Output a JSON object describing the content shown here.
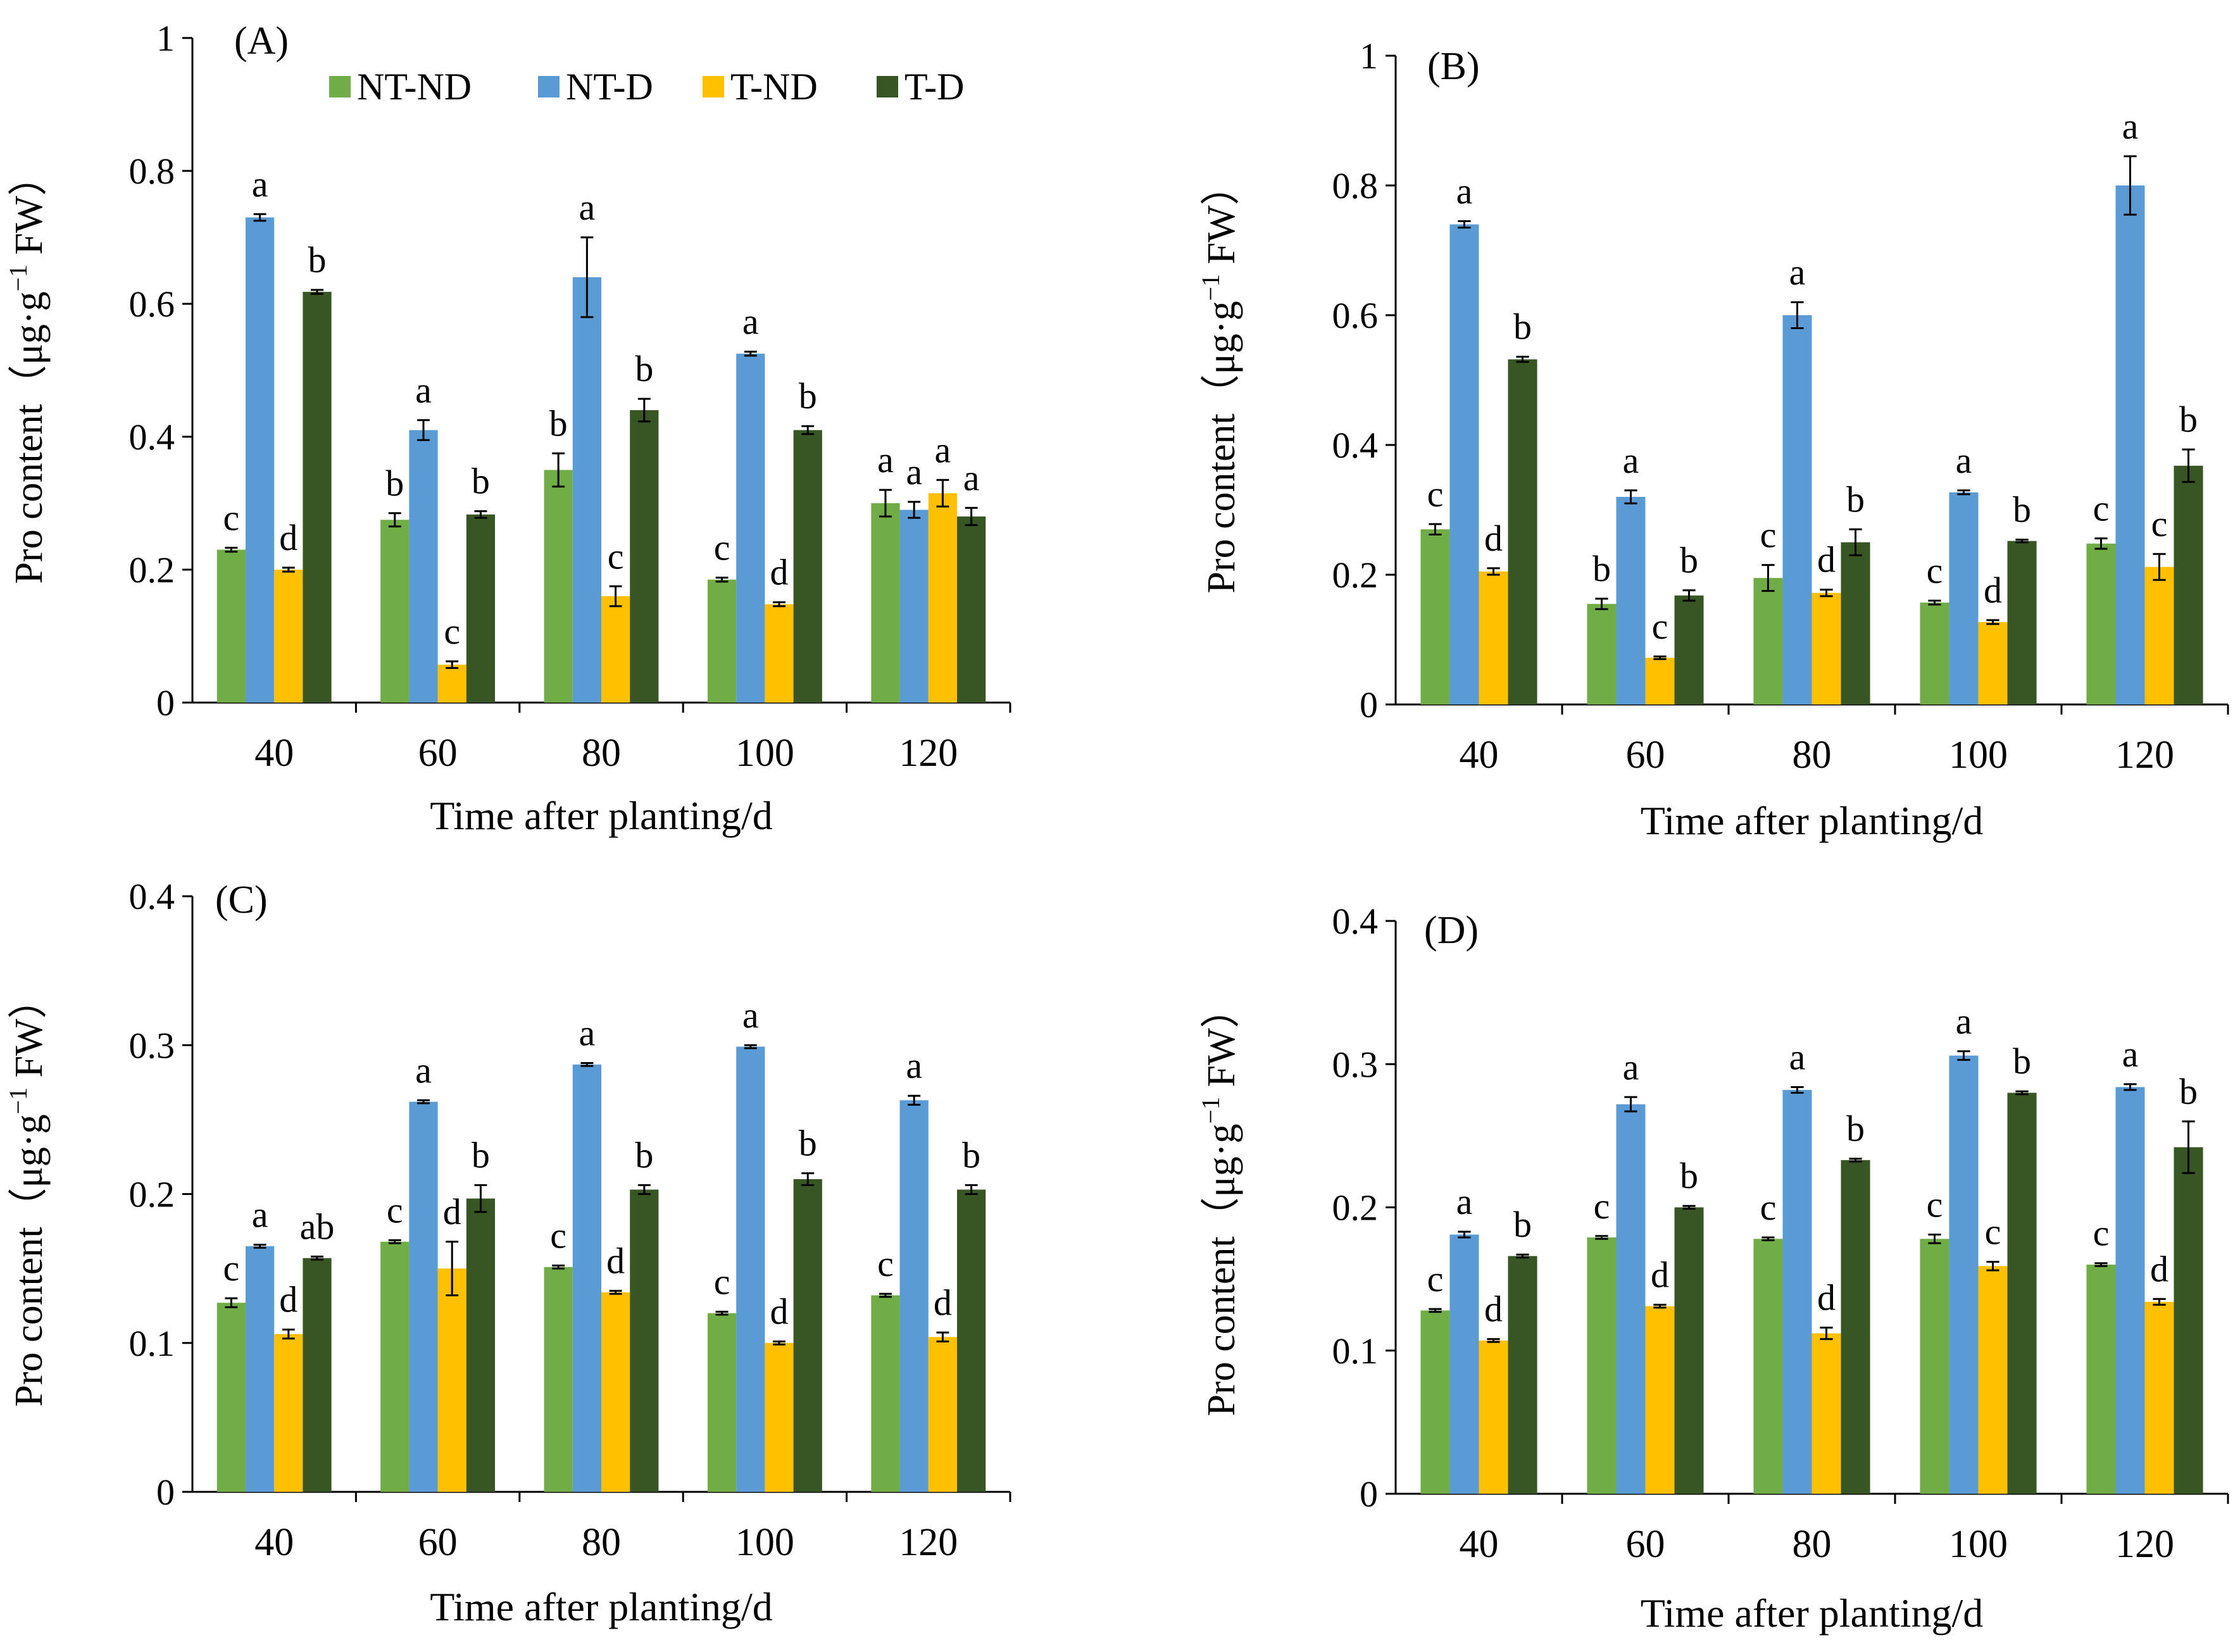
{
  "legend": {
    "items": [
      {
        "name": "NT-ND",
        "color": "#70ad47"
      },
      {
        "name": "NT-D",
        "color": "#5b9bd5"
      },
      {
        "name": "T-ND",
        "color": "#ffc000"
      },
      {
        "name": "T-D",
        "color": "#375623"
      }
    ]
  },
  "chart_data": [
    {
      "type": "bar",
      "panel": "(A)",
      "xlabel": "Time after planting/d",
      "ylabel": "Pro content（μg·g",
      "ylabel_sup": "−1",
      "ylabel_tail": "FW）",
      "ylim": [
        0,
        1
      ],
      "yticks": [
        "0",
        "0.2",
        "0.4",
        "0.6",
        "0.8",
        "1"
      ],
      "yticks_values": [
        0,
        0.2,
        0.4,
        0.6,
        0.8,
        1
      ],
      "categories": [
        "40",
        "60",
        "80",
        "100",
        "120"
      ],
      "series": [
        {
          "name": "NT-ND",
          "values": [
            0.23,
            0.275,
            0.35,
            0.185,
            0.3
          ],
          "errors": [
            0.003,
            0.01,
            0.025,
            0.003,
            0.02
          ],
          "letters": [
            "c",
            "b",
            "b",
            "c",
            "a"
          ]
        },
        {
          "name": "NT-D",
          "values": [
            0.73,
            0.41,
            0.64,
            0.525,
            0.29
          ],
          "errors": [
            0.005,
            0.015,
            0.06,
            0.003,
            0.012
          ],
          "letters": [
            "a",
            "a",
            "a",
            "a",
            "a"
          ]
        },
        {
          "name": "T-ND",
          "values": [
            0.2,
            0.057,
            0.16,
            0.148,
            0.315
          ],
          "errors": [
            0.003,
            0.005,
            0.015,
            0.003,
            0.02
          ],
          "letters": [
            "d",
            "c",
            "c",
            "d",
            "a"
          ]
        },
        {
          "name": "T-D",
          "values": [
            0.618,
            0.283,
            0.44,
            0.41,
            0.28
          ],
          "errors": [
            0.003,
            0.005,
            0.017,
            0.006,
            0.013
          ],
          "letters": [
            "b",
            "b",
            "b",
            "b",
            "a"
          ]
        }
      ]
    },
    {
      "type": "bar",
      "panel": "(B)",
      "xlabel": "Time after planting/d",
      "ylabel": "Pro content（μg·g",
      "ylabel_sup": "−1",
      "ylabel_tail": "FW）",
      "ylim": [
        0,
        1
      ],
      "yticks": [
        "0",
        "0.2",
        "0.4",
        "0.6",
        "0.8",
        "1"
      ],
      "yticks_values": [
        0,
        0.2,
        0.4,
        0.6,
        0.8,
        1
      ],
      "categories": [
        "40",
        "60",
        "80",
        "100",
        "120"
      ],
      "series": [
        {
          "name": "NT-ND",
          "values": [
            0.27,
            0.155,
            0.195,
            0.157,
            0.248
          ],
          "errors": [
            0.008,
            0.008,
            0.02,
            0.003,
            0.008
          ],
          "letters": [
            "c",
            "b",
            "c",
            "c",
            "c"
          ]
        },
        {
          "name": "NT-D",
          "values": [
            0.74,
            0.32,
            0.6,
            0.327,
            0.8
          ],
          "errors": [
            0.005,
            0.01,
            0.02,
            0.003,
            0.045
          ],
          "letters": [
            "a",
            "a",
            "a",
            "a",
            "a"
          ]
        },
        {
          "name": "T-ND",
          "values": [
            0.205,
            0.072,
            0.172,
            0.127,
            0.212
          ],
          "errors": [
            0.005,
            0.002,
            0.005,
            0.003,
            0.02
          ],
          "letters": [
            "d",
            "c",
            "d",
            "d",
            "c"
          ]
        },
        {
          "name": "T-D",
          "values": [
            0.532,
            0.168,
            0.25,
            0.252,
            0.368
          ],
          "errors": [
            0.004,
            0.008,
            0.02,
            0.002,
            0.025
          ],
          "letters": [
            "b",
            "b",
            "b",
            "b",
            "b"
          ]
        }
      ]
    },
    {
      "type": "bar",
      "panel": "(C)",
      "xlabel": "Time after planting/d",
      "ylabel": "Pro content（μg·g",
      "ylabel_sup": "−1",
      "ylabel_tail": "FW）",
      "ylim": [
        0,
        0.4
      ],
      "yticks": [
        "0",
        "0.1",
        "0.2",
        "0.3",
        "0.4"
      ],
      "yticks_values": [
        0,
        0.1,
        0.2,
        0.3,
        0.4
      ],
      "categories": [
        "40",
        "60",
        "80",
        "100",
        "120"
      ],
      "series": [
        {
          "name": "NT-ND",
          "values": [
            0.127,
            0.168,
            0.151,
            0.12,
            0.132
          ],
          "errors": [
            0.003,
            0.001,
            0.001,
            0.001,
            0.001
          ],
          "letters": [
            "c",
            "c",
            "c",
            "c",
            "c"
          ]
        },
        {
          "name": "NT-D",
          "values": [
            0.165,
            0.262,
            0.287,
            0.299,
            0.263
          ],
          "errors": [
            0.001,
            0.001,
            0.001,
            0.001,
            0.003
          ],
          "letters": [
            "a",
            "a",
            "a",
            "a",
            "a"
          ]
        },
        {
          "name": "T-ND",
          "values": [
            0.106,
            0.15,
            0.134,
            0.1,
            0.104
          ],
          "errors": [
            0.003,
            0.018,
            0.001,
            0.001,
            0.003
          ],
          "letters": [
            "d",
            "d",
            "d",
            "d",
            "d"
          ]
        },
        {
          "name": "T-D",
          "values": [
            0.157,
            0.197,
            0.203,
            0.21,
            0.203
          ],
          "errors": [
            0.001,
            0.009,
            0.003,
            0.004,
            0.003
          ],
          "letters": [
            "ab",
            "b",
            "b",
            "b",
            "b"
          ]
        }
      ]
    },
    {
      "type": "bar",
      "panel": "(D)",
      "xlabel": "Time after planting/d",
      "ylabel": "Pro content（μg·g",
      "ylabel_sup": "−1",
      "ylabel_tail": "FW）",
      "ylim": [
        0,
        0.4
      ],
      "yticks": [
        "0",
        "0.1",
        "0.2",
        "0.3",
        "0.4"
      ],
      "yticks_values": [
        0,
        0.1,
        0.2,
        0.3,
        0.4
      ],
      "categories": [
        "40",
        "60",
        "80",
        "100",
        "120"
      ],
      "series": [
        {
          "name": "NT-ND",
          "values": [
            0.128,
            0.179,
            0.178,
            0.178,
            0.16
          ],
          "errors": [
            0.001,
            0.001,
            0.001,
            0.003,
            0.001
          ],
          "letters": [
            "c",
            "c",
            "c",
            "c",
            "c"
          ]
        },
        {
          "name": "NT-D",
          "values": [
            0.181,
            0.272,
            0.282,
            0.306,
            0.284
          ],
          "errors": [
            0.002,
            0.005,
            0.002,
            0.003,
            0.002
          ],
          "letters": [
            "a",
            "a",
            "a",
            "a",
            "a"
          ]
        },
        {
          "name": "T-ND",
          "values": [
            0.107,
            0.131,
            0.112,
            0.159,
            0.134
          ],
          "errors": [
            0.001,
            0.001,
            0.004,
            0.003,
            0.002
          ],
          "letters": [
            "d",
            "d",
            "d",
            "c",
            "d"
          ]
        },
        {
          "name": "T-D",
          "values": [
            0.166,
            0.2,
            0.233,
            0.28,
            0.242
          ],
          "errors": [
            0.001,
            0.001,
            0.001,
            0.001,
            0.018
          ],
          "letters": [
            "b",
            "b",
            "b",
            "b",
            "b"
          ]
        }
      ]
    }
  ]
}
